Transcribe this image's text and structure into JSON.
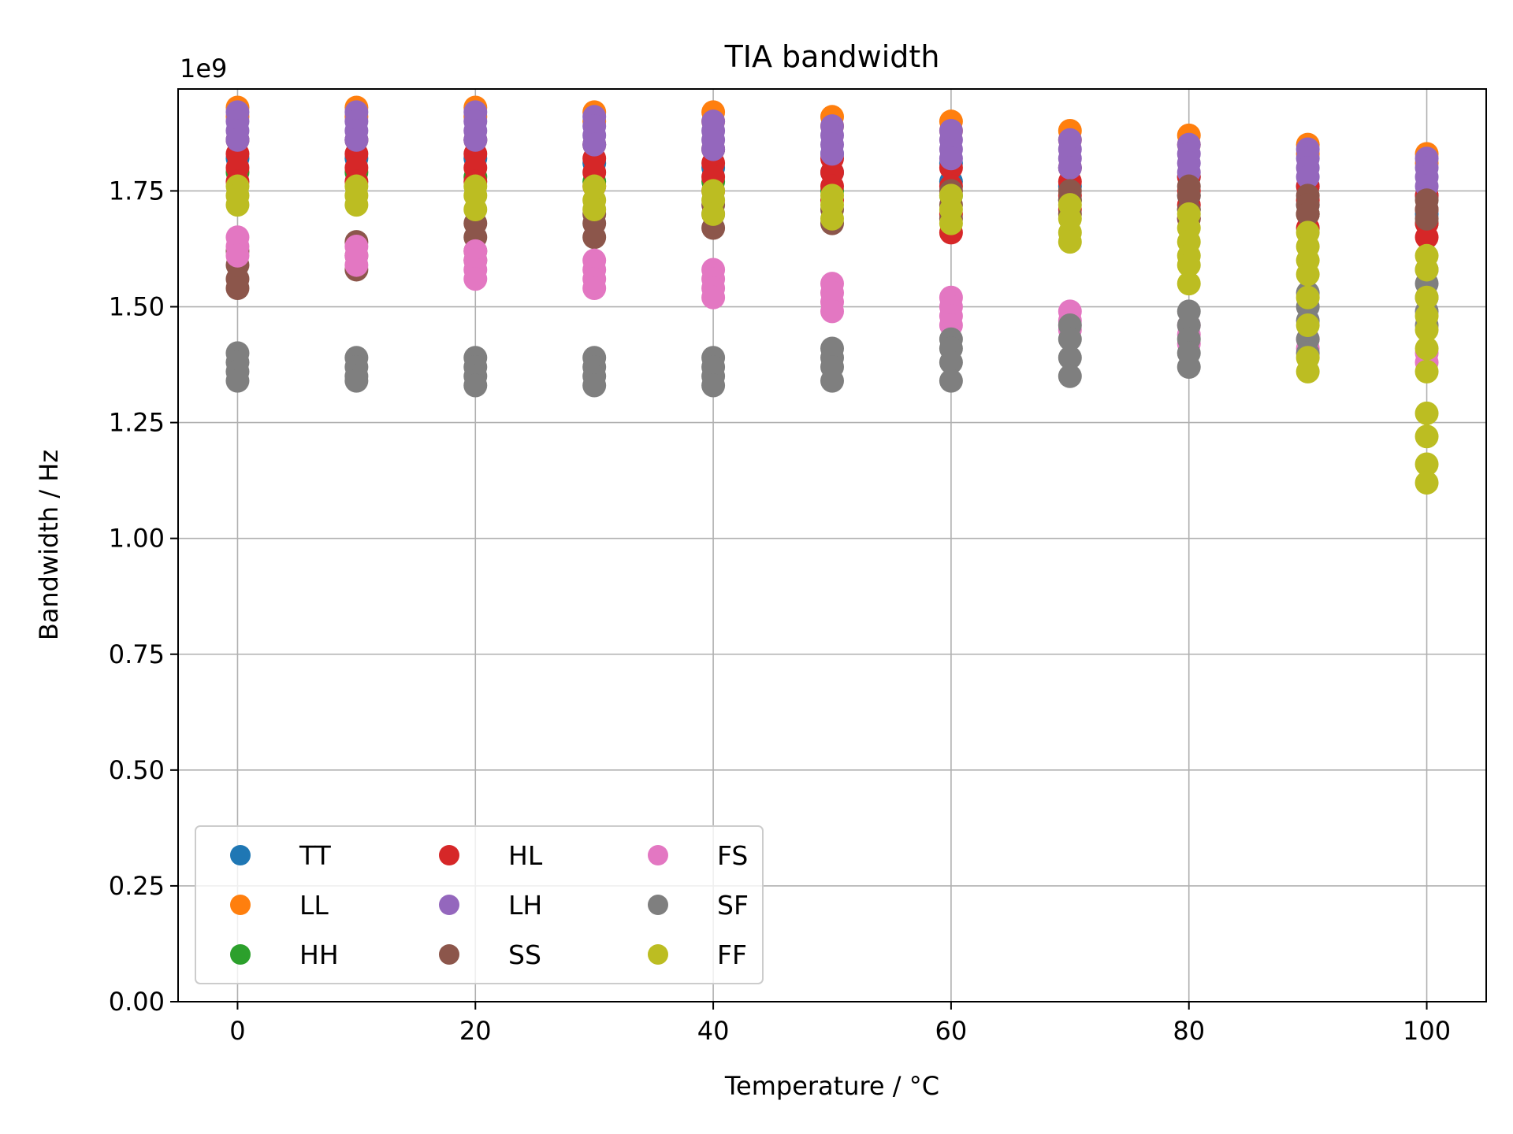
{
  "chart_data": {
    "type": "scatter",
    "title": "TIA bandwidth",
    "xlabel": "Temperature / °C",
    "ylabel": "Bandwidth / Hz",
    "y_offset_label": "1e9",
    "xlim": [
      -5,
      105
    ],
    "ylim": [
      0,
      1.97
    ],
    "y_scale": 1000000000,
    "grid": true,
    "legend": {
      "location": "lower left",
      "columns": 3
    },
    "x_ticks": [
      0,
      20,
      40,
      60,
      80,
      100
    ],
    "x_tick_labels": [
      "0",
      "20",
      "40",
      "60",
      "80",
      "100"
    ],
    "y_ticks": [
      0,
      0.25,
      0.5,
      0.75,
      1.0,
      1.25,
      1.5,
      1.75
    ],
    "y_tick_labels": [
      "0.00",
      "0.25",
      "0.50",
      "0.75",
      "1.00",
      "1.25",
      "1.50",
      "1.75"
    ],
    "x": [
      0,
      10,
      20,
      30,
      40,
      50,
      60,
      70,
      80,
      90,
      100
    ],
    "series": [
      {
        "name": "TT",
        "color": "#1f77b4",
        "points": [
          [
            0,
            1.82
          ],
          [
            0,
            1.86
          ],
          [
            10,
            1.82
          ],
          [
            10,
            1.86
          ],
          [
            20,
            1.82
          ],
          [
            20,
            1.86
          ],
          [
            30,
            1.81
          ],
          [
            30,
            1.85
          ],
          [
            40,
            1.8
          ],
          [
            40,
            1.84
          ],
          [
            50,
            1.79
          ],
          [
            50,
            1.83
          ],
          [
            60,
            1.77
          ],
          [
            60,
            1.81
          ],
          [
            70,
            1.76
          ],
          [
            70,
            1.8
          ],
          [
            80,
            1.74
          ],
          [
            80,
            1.78
          ],
          [
            90,
            1.72
          ],
          [
            90,
            1.76
          ],
          [
            100,
            1.7
          ],
          [
            100,
            1.74
          ]
        ]
      },
      {
        "name": "LL",
        "color": "#ff7f0e",
        "points": [
          [
            0,
            1.93
          ],
          [
            0,
            1.91
          ],
          [
            10,
            1.93
          ],
          [
            10,
            1.91
          ],
          [
            20,
            1.93
          ],
          [
            20,
            1.91
          ],
          [
            30,
            1.92
          ],
          [
            30,
            1.9
          ],
          [
            40,
            1.92
          ],
          [
            40,
            1.9
          ],
          [
            50,
            1.91
          ],
          [
            50,
            1.89
          ],
          [
            60,
            1.9
          ],
          [
            60,
            1.88
          ],
          [
            70,
            1.88
          ],
          [
            70,
            1.86
          ],
          [
            80,
            1.87
          ],
          [
            80,
            1.85
          ],
          [
            90,
            1.85
          ],
          [
            90,
            1.83
          ],
          [
            100,
            1.83
          ],
          [
            100,
            1.81
          ]
        ]
      },
      {
        "name": "HH",
        "color": "#2ca02c",
        "points": [
          [
            0,
            1.79
          ],
          [
            10,
            1.79
          ],
          [
            20,
            1.78
          ],
          [
            30,
            1.77
          ],
          [
            40,
            1.77
          ],
          [
            50,
            1.75
          ],
          [
            60,
            1.74
          ],
          [
            70,
            1.73
          ],
          [
            80,
            1.71
          ],
          [
            90,
            1.7
          ],
          [
            100,
            1.68
          ]
        ]
      },
      {
        "name": "HL",
        "color": "#d62728",
        "points": [
          [
            0,
            1.86
          ],
          [
            0,
            1.83
          ],
          [
            0,
            1.8
          ],
          [
            0,
            1.77
          ],
          [
            10,
            1.86
          ],
          [
            10,
            1.83
          ],
          [
            10,
            1.8
          ],
          [
            10,
            1.77
          ],
          [
            20,
            1.86
          ],
          [
            20,
            1.83
          ],
          [
            20,
            1.8
          ],
          [
            20,
            1.77
          ],
          [
            30,
            1.85
          ],
          [
            30,
            1.82
          ],
          [
            30,
            1.79
          ],
          [
            30,
            1.76
          ],
          [
            40,
            1.84
          ],
          [
            40,
            1.81
          ],
          [
            40,
            1.78
          ],
          [
            40,
            1.75
          ],
          [
            50,
            1.82
          ],
          [
            50,
            1.79
          ],
          [
            50,
            1.76
          ],
          [
            50,
            1.73
          ],
          [
            60,
            1.8
          ],
          [
            60,
            1.76
          ],
          [
            60,
            1.7
          ],
          [
            60,
            1.66
          ],
          [
            70,
            1.8
          ],
          [
            70,
            1.77
          ],
          [
            70,
            1.74
          ],
          [
            70,
            1.71
          ],
          [
            80,
            1.78
          ],
          [
            80,
            1.75
          ],
          [
            80,
            1.72
          ],
          [
            80,
            1.69
          ],
          [
            90,
            1.76
          ],
          [
            90,
            1.73
          ],
          [
            90,
            1.7
          ],
          [
            90,
            1.67
          ],
          [
            100,
            1.74
          ],
          [
            100,
            1.71
          ],
          [
            100,
            1.68
          ],
          [
            100,
            1.65
          ]
        ]
      },
      {
        "name": "LH",
        "color": "#9467bd",
        "points": [
          [
            0,
            1.92
          ],
          [
            0,
            1.9
          ],
          [
            0,
            1.88
          ],
          [
            0,
            1.86
          ],
          [
            10,
            1.92
          ],
          [
            10,
            1.9
          ],
          [
            10,
            1.88
          ],
          [
            10,
            1.86
          ],
          [
            20,
            1.92
          ],
          [
            20,
            1.9
          ],
          [
            20,
            1.88
          ],
          [
            20,
            1.86
          ],
          [
            30,
            1.91
          ],
          [
            30,
            1.89
          ],
          [
            30,
            1.87
          ],
          [
            30,
            1.85
          ],
          [
            40,
            1.9
          ],
          [
            40,
            1.88
          ],
          [
            40,
            1.86
          ],
          [
            40,
            1.84
          ],
          [
            50,
            1.89
          ],
          [
            50,
            1.87
          ],
          [
            50,
            1.85
          ],
          [
            50,
            1.83
          ],
          [
            60,
            1.88
          ],
          [
            60,
            1.86
          ],
          [
            60,
            1.84
          ],
          [
            60,
            1.82
          ],
          [
            70,
            1.86
          ],
          [
            70,
            1.84
          ],
          [
            70,
            1.82
          ],
          [
            70,
            1.8
          ],
          [
            80,
            1.85
          ],
          [
            80,
            1.83
          ],
          [
            80,
            1.81
          ],
          [
            80,
            1.79
          ],
          [
            90,
            1.84
          ],
          [
            90,
            1.82
          ],
          [
            90,
            1.8
          ],
          [
            90,
            1.78
          ],
          [
            100,
            1.82
          ],
          [
            100,
            1.8
          ],
          [
            100,
            1.78
          ],
          [
            100,
            1.76
          ]
        ]
      },
      {
        "name": "SS",
        "color": "#8c564b",
        "points": [
          [
            0,
            1.62
          ],
          [
            0,
            1.59
          ],
          [
            0,
            1.56
          ],
          [
            0,
            1.54
          ],
          [
            10,
            1.64
          ],
          [
            10,
            1.61
          ],
          [
            10,
            1.58
          ],
          [
            20,
            1.68
          ],
          [
            20,
            1.65
          ],
          [
            20,
            1.62
          ],
          [
            20,
            1.6
          ],
          [
            30,
            1.7
          ],
          [
            30,
            1.68
          ],
          [
            30,
            1.65
          ],
          [
            40,
            1.72
          ],
          [
            40,
            1.7
          ],
          [
            40,
            1.67
          ],
          [
            50,
            1.71
          ],
          [
            50,
            1.68
          ],
          [
            60,
            1.75
          ],
          [
            60,
            1.72
          ],
          [
            60,
            1.69
          ],
          [
            70,
            1.75
          ],
          [
            70,
            1.73
          ],
          [
            70,
            1.7
          ],
          [
            80,
            1.76
          ],
          [
            80,
            1.74
          ],
          [
            80,
            1.71
          ],
          [
            80,
            1.69
          ],
          [
            90,
            1.74
          ],
          [
            90,
            1.72
          ],
          [
            90,
            1.7
          ],
          [
            100,
            1.73
          ],
          [
            100,
            1.71
          ],
          [
            100,
            1.69
          ]
        ]
      },
      {
        "name": "FS",
        "color": "#e377c2",
        "points": [
          [
            0,
            1.65
          ],
          [
            0,
            1.63
          ],
          [
            0,
            1.61
          ],
          [
            10,
            1.63
          ],
          [
            10,
            1.61
          ],
          [
            10,
            1.59
          ],
          [
            20,
            1.62
          ],
          [
            20,
            1.6
          ],
          [
            20,
            1.58
          ],
          [
            20,
            1.56
          ],
          [
            30,
            1.6
          ],
          [
            30,
            1.58
          ],
          [
            30,
            1.56
          ],
          [
            30,
            1.54
          ],
          [
            40,
            1.58
          ],
          [
            40,
            1.56
          ],
          [
            40,
            1.54
          ],
          [
            40,
            1.52
          ],
          [
            50,
            1.55
          ],
          [
            50,
            1.53
          ],
          [
            50,
            1.51
          ],
          [
            50,
            1.49
          ],
          [
            60,
            1.52
          ],
          [
            60,
            1.5
          ],
          [
            60,
            1.48
          ],
          [
            60,
            1.46
          ],
          [
            70,
            1.49
          ],
          [
            70,
            1.47
          ],
          [
            70,
            1.45
          ],
          [
            80,
            1.46
          ],
          [
            80,
            1.44
          ],
          [
            80,
            1.42
          ],
          [
            90,
            1.43
          ],
          [
            90,
            1.41
          ],
          [
            100,
            1.4
          ],
          [
            100,
            1.38
          ]
        ]
      },
      {
        "name": "SF",
        "color": "#7f7f7f",
        "points": [
          [
            0,
            1.4
          ],
          [
            0,
            1.38
          ],
          [
            0,
            1.36
          ],
          [
            0,
            1.34
          ],
          [
            10,
            1.39
          ],
          [
            10,
            1.37
          ],
          [
            10,
            1.35
          ],
          [
            10,
            1.34
          ],
          [
            20,
            1.39
          ],
          [
            20,
            1.37
          ],
          [
            20,
            1.35
          ],
          [
            20,
            1.33
          ],
          [
            30,
            1.39
          ],
          [
            30,
            1.37
          ],
          [
            30,
            1.35
          ],
          [
            30,
            1.33
          ],
          [
            40,
            1.39
          ],
          [
            40,
            1.37
          ],
          [
            40,
            1.35
          ],
          [
            40,
            1.33
          ],
          [
            50,
            1.41
          ],
          [
            50,
            1.39
          ],
          [
            50,
            1.37
          ],
          [
            50,
            1.34
          ],
          [
            60,
            1.43
          ],
          [
            60,
            1.41
          ],
          [
            60,
            1.38
          ],
          [
            60,
            1.34
          ],
          [
            70,
            1.46
          ],
          [
            70,
            1.43
          ],
          [
            70,
            1.39
          ],
          [
            70,
            1.35
          ],
          [
            80,
            1.49
          ],
          [
            80,
            1.46
          ],
          [
            80,
            1.43
          ],
          [
            80,
            1.4
          ],
          [
            80,
            1.37
          ],
          [
            90,
            1.53
          ],
          [
            90,
            1.5
          ],
          [
            90,
            1.47
          ],
          [
            90,
            1.43
          ],
          [
            90,
            1.4
          ],
          [
            100,
            1.58
          ],
          [
            100,
            1.55
          ],
          [
            100,
            1.52
          ],
          [
            100,
            1.49
          ],
          [
            100,
            1.46
          ]
        ]
      },
      {
        "name": "FF",
        "color": "#bcbd22",
        "points": [
          [
            0,
            1.76
          ],
          [
            0,
            1.74
          ],
          [
            0,
            1.72
          ],
          [
            10,
            1.76
          ],
          [
            10,
            1.74
          ],
          [
            10,
            1.72
          ],
          [
            20,
            1.76
          ],
          [
            20,
            1.74
          ],
          [
            20,
            1.71
          ],
          [
            30,
            1.76
          ],
          [
            30,
            1.73
          ],
          [
            30,
            1.71
          ],
          [
            40,
            1.75
          ],
          [
            40,
            1.73
          ],
          [
            40,
            1.7
          ],
          [
            50,
            1.74
          ],
          [
            50,
            1.72
          ],
          [
            50,
            1.69
          ],
          [
            60,
            1.74
          ],
          [
            60,
            1.71
          ],
          [
            60,
            1.68
          ],
          [
            70,
            1.72
          ],
          [
            70,
            1.69
          ],
          [
            70,
            1.66
          ],
          [
            70,
            1.64
          ],
          [
            80,
            1.7
          ],
          [
            80,
            1.67
          ],
          [
            80,
            1.64
          ],
          [
            80,
            1.61
          ],
          [
            80,
            1.59
          ],
          [
            80,
            1.55
          ],
          [
            90,
            1.66
          ],
          [
            90,
            1.63
          ],
          [
            90,
            1.6
          ],
          [
            90,
            1.57
          ],
          [
            90,
            1.52
          ],
          [
            90,
            1.46
          ],
          [
            90,
            1.39
          ],
          [
            90,
            1.36
          ],
          [
            100,
            1.61
          ],
          [
            100,
            1.58
          ],
          [
            100,
            1.52
          ],
          [
            100,
            1.48
          ],
          [
            100,
            1.45
          ],
          [
            100,
            1.41
          ],
          [
            100,
            1.36
          ],
          [
            100,
            1.27
          ],
          [
            100,
            1.22
          ],
          [
            100,
            1.16
          ],
          [
            100,
            1.12
          ]
        ]
      }
    ]
  }
}
